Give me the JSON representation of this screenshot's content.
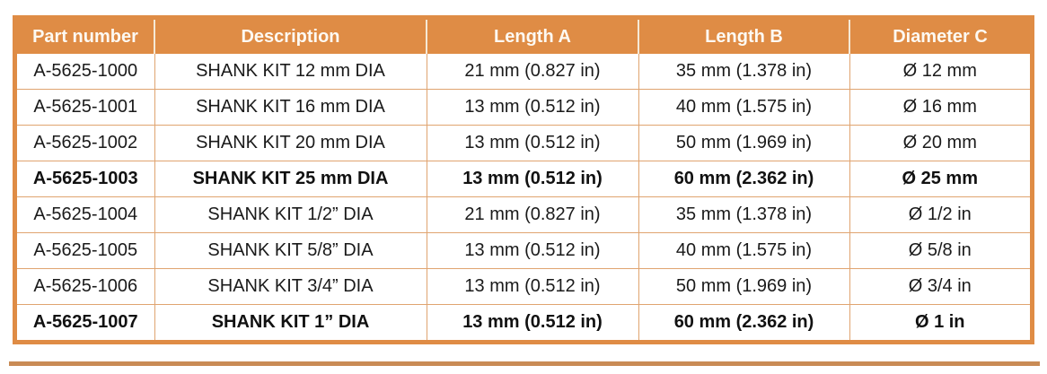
{
  "table": {
    "columns": [
      "Part number",
      "Description",
      "Length A",
      "Length B",
      "Diameter C"
    ],
    "rows": [
      {
        "part": "A-5625-1000",
        "description": "SHANK KIT 12 mm DIA",
        "length_a": "21 mm (0.827 in)",
        "length_b": "35 mm (1.378 in)",
        "diameter_c": "Ø 12 mm",
        "bold": false
      },
      {
        "part": "A-5625-1001",
        "description": "SHANK KIT 16 mm DIA",
        "length_a": "13 mm (0.512 in)",
        "length_b": "40 mm  (1.575 in)",
        "diameter_c": "Ø 16 mm",
        "bold": false
      },
      {
        "part": "A-5625-1002",
        "description": "SHANK KIT 20 mm DIA",
        "length_a": "13 mm (0.512 in)",
        "length_b": "50 mm (1.969 in)",
        "diameter_c": "Ø 20 mm",
        "bold": false
      },
      {
        "part": "A-5625-1003",
        "description": "SHANK KIT 25 mm DIA",
        "length_a": "13 mm (0.512 in)",
        "length_b": "60 mm (2.362 in)",
        "diameter_c": "Ø 25 mm",
        "bold": true
      },
      {
        "part": "A-5625-1004",
        "description": "SHANK KIT 1/2” DIA",
        "length_a": "21 mm (0.827 in)",
        "length_b": "35 mm (1.378 in)",
        "diameter_c": "Ø 1/2 in",
        "bold": false
      },
      {
        "part": "A-5625-1005",
        "description": "SHANK KIT 5/8” DIA",
        "length_a": "13 mm (0.512 in)",
        "length_b": "40 mm (1.575 in)",
        "diameter_c": "Ø 5/8 in",
        "bold": false
      },
      {
        "part": "A-5625-1006",
        "description": "SHANK KIT 3/4” DIA",
        "length_a": "13 mm (0.512 in)",
        "length_b": "50 mm (1.969 in)",
        "diameter_c": "Ø 3/4 in",
        "bold": false
      },
      {
        "part": "A-5625-1007",
        "description": "SHANK KIT 1” DIA",
        "length_a": "13 mm (0.512 in)",
        "length_b": "60 mm (2.362 in)",
        "diameter_c": "Ø 1 in",
        "bold": true
      }
    ]
  },
  "colors": {
    "header_bg": "#DF8C45",
    "outer_border": "#DF8C45",
    "grid_line": "#E0A470",
    "header_divider": "#F5E9D6",
    "bottom_rule": "#C98B55",
    "header_text": "#FDF9F2",
    "body_text": "#1A1A1A"
  }
}
